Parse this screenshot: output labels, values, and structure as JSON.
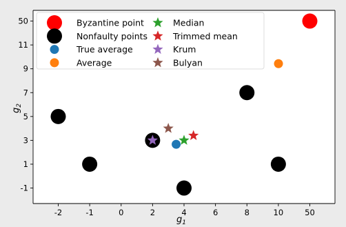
{
  "chart_data": {
    "type": "scatter",
    "x_tick_labels": [
      "-2",
      "-1",
      "0",
      "2",
      "4",
      "6",
      "8",
      "10",
      "50"
    ],
    "y_tick_labels": [
      "-1",
      "1",
      "3",
      "5",
      "7",
      "9",
      "11",
      "50"
    ],
    "x_tick_index": [
      0,
      1,
      2,
      3,
      4,
      5,
      6,
      7,
      8
    ],
    "y_tick_index": [
      0,
      1,
      2,
      3,
      4,
      5,
      6,
      7
    ],
    "xlim_index": [
      -0.8,
      8.8
    ],
    "ylim_index": [
      -0.65,
      7.45
    ],
    "xlabel": "g",
    "xlabel_subscript": "1",
    "ylabel": "g",
    "ylabel_subscript": "2",
    "grid": false,
    "legend_position": "top-left",
    "legend_columns": 2,
    "series": [
      {
        "name": "Byzantine point",
        "marker": "circle",
        "size": "large",
        "color": "#ff0000",
        "points": [
          {
            "x": 50,
            "y": 50
          }
        ]
      },
      {
        "name": "Nonfaulty points",
        "marker": "circle",
        "size": "large",
        "color": "#000000",
        "points": [
          {
            "x": -2,
            "y": 5
          },
          {
            "x": -1,
            "y": 1
          },
          {
            "x": 2,
            "y": 3
          },
          {
            "x": 4,
            "y": -1
          },
          {
            "x": 8,
            "y": 7
          },
          {
            "x": 10,
            "y": 1
          }
        ]
      },
      {
        "name": "True average",
        "marker": "circle",
        "size": "small",
        "color": "#1f77b4",
        "points": [
          {
            "x": 3.5,
            "y": 2.67
          }
        ]
      },
      {
        "name": "Average",
        "marker": "circle",
        "size": "small",
        "color": "#ff7f0e",
        "points": [
          {
            "x": 10.14,
            "y": 9.43
          }
        ]
      },
      {
        "name": "Median",
        "marker": "star",
        "size": "small",
        "color": "#2ca02c",
        "points": [
          {
            "x": 4,
            "y": 3
          }
        ]
      },
      {
        "name": "Trimmed mean",
        "marker": "star",
        "size": "small",
        "color": "#d62728",
        "points": [
          {
            "x": 4.6,
            "y": 3.4
          }
        ]
      },
      {
        "name": "Krum",
        "marker": "star",
        "size": "small",
        "color": "#9467bd",
        "points": [
          {
            "x": 2,
            "y": 3
          }
        ]
      },
      {
        "name": "Bulyan",
        "marker": "star",
        "size": "small",
        "color": "#8c564b",
        "points": [
          {
            "x": 3,
            "y": 4
          }
        ]
      }
    ]
  }
}
